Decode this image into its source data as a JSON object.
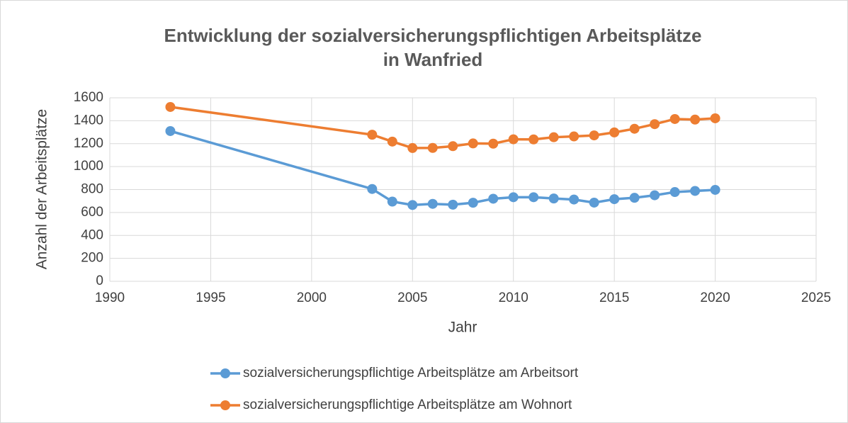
{
  "chart_data": {
    "type": "line",
    "title": [
      "Entwicklung der sozialversicherungspflichtigen Arbeitsplätze",
      "in Wanfried"
    ],
    "xlabel": "Jahr",
    "ylabel": "Anzahl der Arbeitsplätze",
    "x": [
      1993,
      2003,
      2004,
      2005,
      2006,
      2007,
      2008,
      2009,
      2010,
      2011,
      2012,
      2013,
      2014,
      2015,
      2016,
      2017,
      2018,
      2019,
      2020
    ],
    "series": [
      {
        "name": "sozialversicherungspflichtige Arbeitsplätze am Arbeitsort",
        "color": "#5b9bd5",
        "values": [
          1310,
          805,
          695,
          665,
          675,
          668,
          685,
          720,
          733,
          733,
          722,
          713,
          686,
          716,
          728,
          750,
          778,
          788,
          797
        ]
      },
      {
        "name": "sozialversicherungspflichtige Arbeitsplätze am Wohnort",
        "color": "#ed7d31",
        "values": [
          1520,
          1278,
          1218,
          1162,
          1163,
          1178,
          1202,
          1200,
          1238,
          1237,
          1256,
          1263,
          1272,
          1298,
          1330,
          1370,
          1415,
          1410,
          1421
        ]
      }
    ],
    "xlim": [
      1990,
      2025
    ],
    "xticks": [
      1990,
      1995,
      2000,
      2005,
      2010,
      2015,
      2020,
      2025
    ],
    "ylim": [
      0,
      1600
    ],
    "yticks": [
      0,
      200,
      400,
      600,
      800,
      1000,
      1200,
      1400,
      1600
    ],
    "grid": true,
    "legend": "bottom"
  }
}
